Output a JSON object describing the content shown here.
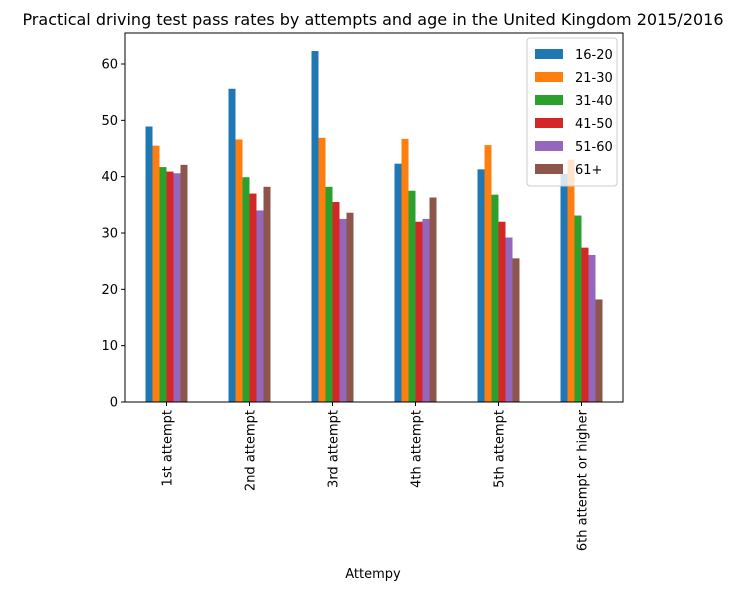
{
  "chart_data": {
    "type": "bar",
    "title": "Practical driving test pass rates by attempts and age in the United Kingdom 2015/2016",
    "xlabel": "Attempy",
    "ylabel": "",
    "ylim": [
      0,
      65.5
    ],
    "yticks": [
      0,
      10,
      20,
      30,
      40,
      50,
      60
    ],
    "grid": false,
    "legend_position": "top-right",
    "categories": [
      "1st attempt",
      "2nd attempt",
      "3rd attempt",
      "4th attempt",
      "5th attempt",
      "6th attempt or higher"
    ],
    "series": [
      {
        "name": "16-20",
        "color": "#1f77b4",
        "values": [
          48.9,
          55.6,
          62.3,
          42.3,
          41.3,
          40.5
        ]
      },
      {
        "name": "21-30",
        "color": "#ff7f0e",
        "values": [
          45.5,
          46.6,
          46.9,
          46.7,
          45.6,
          43.0
        ]
      },
      {
        "name": "31-40",
        "color": "#2ca02c",
        "values": [
          41.7,
          39.9,
          38.2,
          37.5,
          36.8,
          33.1
        ]
      },
      {
        "name": "41-50",
        "color": "#d62728",
        "values": [
          40.9,
          37.0,
          35.5,
          32.0,
          32.0,
          27.4
        ]
      },
      {
        "name": "51-60",
        "color": "#9467bd",
        "values": [
          40.6,
          34.0,
          32.5,
          32.5,
          29.2,
          26.1
        ]
      },
      {
        "name": "61+",
        "color": "#8c564b",
        "values": [
          42.1,
          38.2,
          33.6,
          36.3,
          25.5,
          18.2
        ]
      }
    ]
  }
}
